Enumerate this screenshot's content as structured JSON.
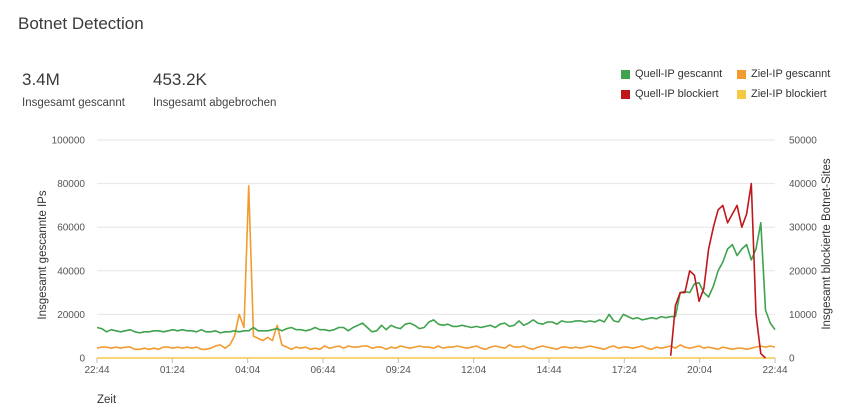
{
  "header": {
    "title": "Botnet Detection"
  },
  "kpis": [
    {
      "value": "3.4M",
      "label": "Insgesamt gescannt"
    },
    {
      "value": "453.2K",
      "label": "Insgesamt abgebrochen"
    }
  ],
  "colors": {
    "src_scanned": "#3fa34d",
    "dst_scanned": "#f29b30",
    "src_blocked": "#c0171c",
    "dst_blocked": "#f6c945"
  },
  "chart_data": {
    "type": "line",
    "title": "",
    "xlabel": "Zeit",
    "ylabel_left": "Insgesamt gescannte IPs",
    "ylabel_right": "Insgesamt blockierte Botnet-Sites",
    "x_ticks": [
      "22:44",
      "01:24",
      "04:04",
      "06:44",
      "09:24",
      "12:04",
      "14:44",
      "17:24",
      "20:04",
      "22:44"
    ],
    "ylim_left": [
      0,
      100000
    ],
    "ylim_right": [
      0,
      50000
    ],
    "y_ticks_left": [
      "0",
      "20000",
      "40000",
      "60000",
      "80000",
      "100000"
    ],
    "y_ticks_right": [
      "0",
      "10000",
      "20000",
      "30000",
      "40000",
      "50000"
    ],
    "grid": true,
    "legend_position": "top-right",
    "series": [
      {
        "name": "Quell-IP gescannt",
        "axis": "left",
        "color": "#3fa34d",
        "values": [
          14000,
          13500,
          12000,
          13000,
          12500,
          12000,
          12500,
          13000,
          12000,
          11500,
          12000,
          12000,
          12500,
          12500,
          12000,
          12500,
          13000,
          12500,
          13000,
          12500,
          12500,
          12000,
          13000,
          12000,
          12000,
          12500,
          11500,
          12000,
          12000,
          12500,
          12000,
          12500,
          12500,
          14000,
          12500,
          12500,
          12500,
          13000,
          13500,
          12500,
          13500,
          14000,
          13000,
          13000,
          12500,
          13000,
          14000,
          13000,
          13000,
          12500,
          13000,
          14000,
          14000,
          12500,
          14000,
          15000,
          16000,
          14000,
          12000,
          12500,
          15000,
          13000,
          15000,
          14000,
          13500,
          15500,
          16000,
          15000,
          13500,
          14000,
          16500,
          17500,
          15500,
          15000,
          15500,
          14500,
          14500,
          15000,
          14500,
          14000,
          14500,
          14000,
          14500,
          15000,
          14000,
          15500,
          16000,
          14500,
          15000,
          17000,
          15000,
          16000,
          17500,
          16000,
          15500,
          16500,
          16500,
          15500,
          17000,
          16500,
          16500,
          17000,
          17000,
          16500,
          17000,
          16500,
          17500,
          16500,
          20000,
          17000,
          16500,
          20000,
          19000,
          18000,
          18500,
          17500,
          18000,
          18500,
          18000,
          19000,
          18500,
          19000,
          19000,
          30000,
          30500,
          30000,
          34000,
          34500,
          30000,
          28000,
          33000,
          40000,
          44000,
          50000,
          52000,
          47000,
          50000,
          52000,
          45000,
          50000,
          62000,
          22000,
          16000,
          13000
        ]
      },
      {
        "name": "Ziel-IP gescannt",
        "axis": "left",
        "color": "#f29b30",
        "values": [
          4500,
          5000,
          5000,
          4500,
          5000,
          4500,
          5000,
          5000,
          4000,
          4000,
          4500,
          4000,
          4500,
          4000,
          5000,
          5000,
          4500,
          5000,
          4500,
          5000,
          4500,
          5000,
          4000,
          4000,
          4500,
          5500,
          6000,
          4500,
          6000,
          10000,
          20000,
          14000,
          79000,
          10000,
          9000,
          8000,
          9500,
          8000,
          15000,
          6000,
          5000,
          4000,
          5000,
          4500,
          5000,
          4000,
          4500,
          4000,
          5500,
          4500,
          5000,
          5500,
          4500,
          5500,
          5000,
          5000,
          5500,
          5500,
          4500,
          5000,
          5000,
          4000,
          5000,
          4500,
          5500,
          5000,
          4500,
          5000,
          5500,
          5000,
          5000,
          4500,
          5500,
          4500,
          5000,
          5000,
          5500,
          5000,
          4500,
          5000,
          5500,
          4500,
          4000,
          5000,
          5500,
          5000,
          4500,
          6000,
          5000,
          5000,
          5500,
          4500,
          4000,
          5000,
          5500,
          5000,
          4500,
          4000,
          5000,
          5000,
          4500,
          5000,
          4500,
          5000,
          5500,
          5000,
          4500,
          4000,
          5000,
          5500,
          4500,
          5000,
          5000,
          4500,
          5000,
          5500,
          4500,
          4000,
          5000,
          4500,
          5000,
          5500,
          4500,
          6000,
          5000,
          4500,
          5000,
          5500,
          4500,
          5000,
          4500,
          4000,
          5000,
          4500,
          4000,
          4500,
          4500,
          4000,
          4500,
          5000,
          5500,
          5000,
          5500,
          5000
        ]
      },
      {
        "name": "Quell-IP blockiert",
        "axis": "right",
        "color": "#c0171c",
        "x_start_index": 121,
        "values": [
          500,
          12000,
          15000,
          15000,
          20000,
          19000,
          13000,
          16000,
          25000,
          30000,
          34000,
          35000,
          31000,
          33000,
          35000,
          30000,
          33000,
          40000,
          10000,
          1000,
          0
        ]
      },
      {
        "name": "Ziel-IP blockiert",
        "axis": "right",
        "color": "#f6c945",
        "values": [
          0,
          0,
          0,
          0,
          0,
          0,
          0,
          0,
          0,
          0,
          0,
          0,
          0,
          0,
          0,
          0,
          0,
          0,
          0,
          0,
          0,
          0,
          0,
          0,
          0,
          0,
          0,
          0,
          0,
          0,
          0,
          0,
          0,
          0,
          0,
          0,
          0,
          0,
          0,
          0,
          0,
          0,
          0,
          0,
          0,
          0,
          0,
          0,
          0,
          0,
          0,
          0,
          0,
          0,
          0,
          0,
          0,
          0,
          0,
          0,
          0,
          0,
          0,
          0,
          0,
          0,
          0,
          0,
          0,
          0,
          0,
          0,
          0,
          0,
          0,
          0,
          0,
          0,
          0,
          0,
          0,
          0,
          0,
          0,
          0,
          0,
          0,
          0,
          0,
          0,
          0,
          0,
          0,
          0,
          0,
          0,
          0,
          0,
          0,
          0,
          0,
          0,
          0,
          0,
          0,
          0,
          0,
          0,
          0,
          0,
          0,
          0,
          0,
          0,
          0,
          0,
          0,
          0,
          0,
          0,
          0,
          0,
          0,
          0,
          0,
          0,
          0,
          0,
          0,
          0,
          0,
          0,
          0,
          0,
          0,
          0,
          0,
          0,
          0,
          0,
          0,
          0,
          0,
          0
        ]
      }
    ]
  }
}
